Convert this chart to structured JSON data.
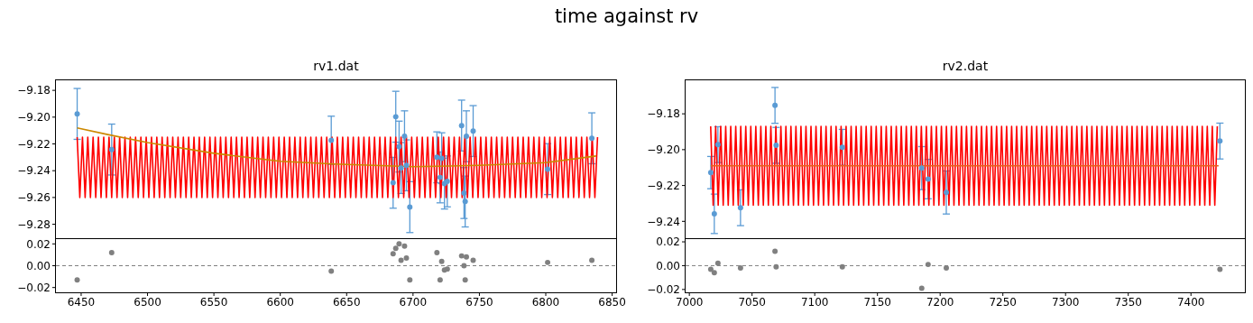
{
  "chart_data": [
    {
      "type": "line",
      "title": "rv1.dat",
      "annotations": [
        "time against rv"
      ],
      "xlim": [
        6431,
        6853
      ],
      "ylim": [
        -9.2904,
        -9.1725
      ],
      "yticks": [
        {
          "value": -9.28,
          "label": "−9.28"
        },
        {
          "value": -9.26,
          "label": "−9.26"
        },
        {
          "value": -9.24,
          "label": "−9.24"
        },
        {
          "value": -9.22,
          "label": "−9.22"
        },
        {
          "value": -9.2,
          "label": "−9.20"
        },
        {
          "value": -9.18,
          "label": "−9.18"
        }
      ],
      "tick_labels": "y",
      "series": [
        {
          "type": "scatter",
          "color": "#5a9bd4",
          "marker": "circle",
          "x": [
            6447,
            6473,
            6638.4,
            6685,
            6687,
            6689.5,
            6691,
            6693.6,
            6695,
            6697.6,
            6718,
            6720.4,
            6721.6,
            6723.7,
            6725.8,
            6736.6,
            6738.4,
            6739.3,
            6740.2,
            6745.3,
            6801.4,
            6834.7
          ],
          "values": [
            -9.1976,
            -9.2242,
            -9.2173,
            -9.249,
            -9.1997,
            -9.222,
            -9.238,
            -9.2143,
            -9.236,
            -9.2672,
            -9.23,
            -9.245,
            -9.2307,
            -9.2496,
            -9.248,
            -9.2063,
            -9.2567,
            -9.263,
            -9.2143,
            -9.2104,
            -9.2388,
            -9.2158
          ],
          "errors": [
            0.019,
            0.019,
            0.018,
            0.019,
            0.019,
            0.019,
            0.019,
            0.019,
            0.019,
            0.019,
            0.019,
            0.019,
            0.019,
            0.019,
            0.019,
            0.019,
            0.019,
            0.019,
            0.019,
            0.019,
            0.019,
            0.019
          ]
        },
        {
          "type": "line",
          "color": "#ff0000",
          "x": [
            6447,
            6449,
            6451,
            6453,
            6455,
            6457,
            6459,
            6461,
            6463,
            6465,
            6467,
            6469,
            6471,
            6473,
            6475,
            6477,
            6479,
            6481,
            6483,
            6485,
            6487,
            6489,
            6491,
            6493,
            6495,
            6497,
            6499,
            6501,
            6503,
            6505,
            6507,
            6509,
            6511,
            6513,
            6515,
            6517,
            6519,
            6521,
            6523,
            6525,
            6527,
            6529,
            6531,
            6533,
            6535,
            6537,
            6539,
            6541,
            6543,
            6545,
            6547,
            6549,
            6551,
            6553,
            6555,
            6557,
            6559,
            6561,
            6563,
            6565,
            6567,
            6569,
            6571,
            6573,
            6575,
            6577,
            6579,
            6581,
            6583,
            6585,
            6587,
            6589,
            6591,
            6593,
            6595,
            6597,
            6599,
            6601,
            6603,
            6605,
            6607,
            6609,
            6611,
            6613,
            6615,
            6617,
            6619,
            6621,
            6623,
            6625,
            6627,
            6629,
            6631,
            6633,
            6635,
            6637,
            6639,
            6641,
            6643,
            6645,
            6647,
            6649,
            6651,
            6653,
            6655,
            6657,
            6659,
            6661,
            6663,
            6665,
            6667,
            6669,
            6671,
            6673,
            6675,
            6677,
            6679,
            6681,
            6683,
            6685,
            6687,
            6689,
            6691,
            6693,
            6695,
            6697,
            6699,
            6701,
            6703,
            6705,
            6707,
            6709,
            6711,
            6713,
            6715,
            6717,
            6719,
            6721,
            6723,
            6725,
            6727,
            6729,
            6731,
            6733,
            6735,
            6737,
            6739,
            6741,
            6743,
            6745,
            6747,
            6749,
            6751,
            6753,
            6755,
            6757,
            6759,
            6761,
            6763,
            6765,
            6767,
            6769,
            6771,
            6773,
            6775,
            6777,
            6779,
            6781,
            6783,
            6785,
            6787,
            6789,
            6791,
            6793,
            6795,
            6797,
            6799,
            6801,
            6803,
            6805,
            6807,
            6809,
            6811,
            6813,
            6815,
            6817,
            6819,
            6821,
            6823,
            6825,
            6827,
            6829,
            6831,
            6833,
            6835,
            6837,
            6839
          ],
          "values": [
            -9.215,
            -9.26,
            -9.215,
            -9.26,
            -9.215,
            -9.26,
            -9.215,
            -9.26,
            -9.215,
            -9.26,
            -9.215,
            -9.26,
            -9.215,
            -9.26,
            -9.215,
            -9.26,
            -9.215,
            -9.26,
            -9.215,
            -9.26,
            -9.215,
            -9.26,
            -9.215,
            -9.26,
            -9.215,
            -9.26,
            -9.215,
            -9.26,
            -9.215,
            -9.26,
            -9.215,
            -9.26,
            -9.215,
            -9.26,
            -9.215,
            -9.26,
            -9.215,
            -9.26,
            -9.215,
            -9.26,
            -9.215,
            -9.26,
            -9.215,
            -9.26,
            -9.215,
            -9.26,
            -9.215,
            -9.26,
            -9.215,
            -9.26,
            -9.215,
            -9.26,
            -9.215,
            -9.26,
            -9.215,
            -9.26,
            -9.215,
            -9.26,
            -9.215,
            -9.26,
            -9.215,
            -9.26,
            -9.215,
            -9.26,
            -9.215,
            -9.26,
            -9.215,
            -9.26,
            -9.215,
            -9.26,
            -9.215,
            -9.26,
            -9.215,
            -9.26,
            -9.215,
            -9.26,
            -9.215,
            -9.26,
            -9.215,
            -9.26,
            -9.215,
            -9.26,
            -9.215,
            -9.26,
            -9.215,
            -9.26,
            -9.215,
            -9.26,
            -9.215,
            -9.26,
            -9.215,
            -9.26,
            -9.215,
            -9.26,
            -9.215,
            -9.26,
            -9.215,
            -9.26,
            -9.215,
            -9.26,
            -9.215,
            -9.26,
            -9.215,
            -9.26,
            -9.215,
            -9.26,
            -9.215,
            -9.26,
            -9.215,
            -9.26,
            -9.215,
            -9.26,
            -9.215,
            -9.26,
            -9.215,
            -9.26,
            -9.215,
            -9.26,
            -9.215,
            -9.26,
            -9.215,
            -9.26,
            -9.215,
            -9.26,
            -9.215,
            -9.26,
            -9.215,
            -9.26,
            -9.215,
            -9.26,
            -9.215,
            -9.26,
            -9.215,
            -9.26,
            -9.215,
            -9.26,
            -9.215,
            -9.26,
            -9.215,
            -9.26,
            -9.215,
            -9.26,
            -9.215,
            -9.26,
            -9.215,
            -9.26,
            -9.215,
            -9.26,
            -9.215,
            -9.26,
            -9.215,
            -9.26,
            -9.215,
            -9.26,
            -9.215,
            -9.26,
            -9.215,
            -9.26,
            -9.215,
            -9.26,
            -9.215,
            -9.26,
            -9.215,
            -9.26,
            -9.215,
            -9.26,
            -9.215,
            -9.26,
            -9.215,
            -9.26,
            -9.215,
            -9.26,
            -9.215,
            -9.26,
            -9.215,
            -9.26,
            -9.215,
            -9.26,
            -9.215,
            -9.26,
            -9.215,
            -9.26,
            -9.215,
            -9.26,
            -9.215,
            -9.26,
            -9.215,
            -9.26,
            -9.215,
            -9.26,
            -9.215,
            -9.26,
            -9.215,
            -9.26,
            -9.215,
            -9.26,
            -9.215
          ]
        },
        {
          "type": "line",
          "color": "#cc8800",
          "x": [
            6447,
            6470,
            6500,
            6550,
            6600,
            6640,
            6700,
            6750,
            6800,
            6838
          ],
          "values": [
            -9.208,
            -9.213,
            -9.219,
            -9.227,
            -9.233,
            -9.235,
            -9.237,
            -9.236,
            -9.234,
            -9.229
          ]
        }
      ]
    },
    {
      "type": "scatter",
      "color": "#808080",
      "marker": "circle",
      "xlim": [
        6431,
        6853
      ],
      "xticks": [
        6450,
        6500,
        6550,
        6600,
        6650,
        6700,
        6750,
        6800,
        6850
      ],
      "ylim": [
        -0.0244,
        0.0244
      ],
      "yticks": [
        {
          "value": -0.02,
          "label": "−0.02"
        },
        {
          "value": 0,
          "label": "0.00"
        },
        {
          "value": 0.02,
          "label": "0.02"
        }
      ],
      "ref_lines": [
        {
          "axis": "y",
          "value": 0,
          "color": "#808080",
          "line_style": "dashed"
        }
      ],
      "x": [
        6447,
        6473,
        6638.4,
        6685,
        6687,
        6689.5,
        6691,
        6693.6,
        6695,
        6697.6,
        6718,
        6720.4,
        6721.6,
        6723.7,
        6725.8,
        6736.6,
        6738.4,
        6739.3,
        6740.2,
        6745.3,
        6801.4,
        6834.7
      ],
      "values": [
        -0.013,
        0.012,
        -0.005,
        0.011,
        0.016,
        0.02,
        0.005,
        0.018,
        0.007,
        -0.013,
        0.012,
        -0.013,
        0.004,
        -0.004,
        -0.003,
        0.009,
        0,
        -0.013,
        0.008,
        0.005,
        0.003,
        0.005
      ]
    },
    {
      "type": "line",
      "title": "rv2.dat",
      "xlim": [
        6997,
        7443
      ],
      "ylim": [
        -9.2494,
        -9.1613
      ],
      "yticks": [
        {
          "value": -9.24,
          "label": "−9.24"
        },
        {
          "value": -9.22,
          "label": "−9.22"
        },
        {
          "value": -9.2,
          "label": "−9.20"
        },
        {
          "value": -9.18,
          "label": "−9.18"
        }
      ],
      "tick_labels": "y",
      "series": [
        {
          "type": "scatter",
          "color": "#5a9bd4",
          "marker": "circle",
          "x": [
            7017.1,
            7019.9,
            7022.8,
            7040.8,
            7068.3,
            7069.2,
            7122,
            7185.3,
            7190.4,
            7204.9,
            7423.1
          ],
          "values": [
            -9.2128,
            -9.2358,
            -9.1972,
            -9.2324,
            -9.1753,
            -9.1976,
            -9.1987,
            -9.2103,
            -9.2164,
            -9.2239,
            -9.1952
          ],
          "errors": [
            0.009,
            0.011,
            0.01,
            0.01,
            0.01,
            0.01,
            0.01,
            0.012,
            0.011,
            0.012,
            0.01
          ]
        },
        {
          "type": "line",
          "color": "#ff0000",
          "x": [
            7017,
            7019,
            7021,
            7023,
            7025,
            7027,
            7029,
            7031,
            7033,
            7035,
            7037,
            7039,
            7041,
            7043,
            7045,
            7047,
            7049,
            7051,
            7053,
            7055,
            7057,
            7059,
            7061,
            7063,
            7065,
            7067,
            7069,
            7071,
            7073,
            7075,
            7077,
            7079,
            7081,
            7083,
            7085,
            7087,
            7089,
            7091,
            7093,
            7095,
            7097,
            7099,
            7101,
            7103,
            7105,
            7107,
            7109,
            7111,
            7113,
            7115,
            7117,
            7119,
            7121,
            7123,
            7125,
            7127,
            7129,
            7131,
            7133,
            7135,
            7137,
            7139,
            7141,
            7143,
            7145,
            7147,
            7149,
            7151,
            7153,
            7155,
            7157,
            7159,
            7161,
            7163,
            7165,
            7167,
            7169,
            7171,
            7173,
            7175,
            7177,
            7179,
            7181,
            7183,
            7185,
            7187,
            7189,
            7191,
            7193,
            7195,
            7197,
            7199,
            7201,
            7203,
            7205,
            7207,
            7209,
            7211,
            7213,
            7215,
            7217,
            7219,
            7221,
            7223,
            7225,
            7227,
            7229,
            7231,
            7233,
            7235,
            7237,
            7239,
            7241,
            7243,
            7245,
            7247,
            7249,
            7251,
            7253,
            7255,
            7257,
            7259,
            7261,
            7263,
            7265,
            7267,
            7269,
            7271,
            7273,
            7275,
            7277,
            7279,
            7281,
            7283,
            7285,
            7287,
            7289,
            7291,
            7293,
            7295,
            7297,
            7299,
            7301,
            7303,
            7305,
            7307,
            7309,
            7311,
            7313,
            7315,
            7317,
            7319,
            7321,
            7323,
            7325,
            7327,
            7329,
            7331,
            7333,
            7335,
            7337,
            7339,
            7341,
            7343,
            7345,
            7347,
            7349,
            7351,
            7353,
            7355,
            7357,
            7359,
            7361,
            7363,
            7365,
            7367,
            7369,
            7371,
            7373,
            7375,
            7377,
            7379,
            7381,
            7383,
            7385,
            7387,
            7389,
            7391,
            7393,
            7395,
            7397,
            7399,
            7401,
            7403,
            7405,
            7407,
            7409,
            7411,
            7413,
            7415,
            7417,
            7419,
            7421
          ],
          "values": [
            -9.187,
            -9.231,
            -9.187,
            -9.231,
            -9.187,
            -9.231,
            -9.187,
            -9.231,
            -9.187,
            -9.231,
            -9.187,
            -9.231,
            -9.187,
            -9.231,
            -9.187,
            -9.231,
            -9.187,
            -9.231,
            -9.187,
            -9.231,
            -9.187,
            -9.231,
            -9.187,
            -9.231,
            -9.187,
            -9.231,
            -9.187,
            -9.231,
            -9.187,
            -9.231,
            -9.187,
            -9.231,
            -9.187,
            -9.231,
            -9.187,
            -9.231,
            -9.187,
            -9.231,
            -9.187,
            -9.231,
            -9.187,
            -9.231,
            -9.187,
            -9.231,
            -9.187,
            -9.231,
            -9.187,
            -9.231,
            -9.187,
            -9.231,
            -9.187,
            -9.231,
            -9.187,
            -9.231,
            -9.187,
            -9.231,
            -9.187,
            -9.231,
            -9.187,
            -9.231,
            -9.187,
            -9.231,
            -9.187,
            -9.231,
            -9.187,
            -9.231,
            -9.187,
            -9.231,
            -9.187,
            -9.231,
            -9.187,
            -9.231,
            -9.187,
            -9.231,
            -9.187,
            -9.231,
            -9.187,
            -9.231,
            -9.187,
            -9.231,
            -9.187,
            -9.231,
            -9.187,
            -9.231,
            -9.187,
            -9.231,
            -9.187,
            -9.231,
            -9.187,
            -9.231,
            -9.187,
            -9.231,
            -9.187,
            -9.231,
            -9.187,
            -9.231,
            -9.187,
            -9.231,
            -9.187,
            -9.231,
            -9.187,
            -9.231,
            -9.187,
            -9.231,
            -9.187,
            -9.231,
            -9.187,
            -9.231,
            -9.187,
            -9.231,
            -9.187,
            -9.231,
            -9.187,
            -9.231,
            -9.187,
            -9.231,
            -9.187,
            -9.231,
            -9.187,
            -9.231,
            -9.187,
            -9.231,
            -9.187,
            -9.231,
            -9.187,
            -9.231,
            -9.187,
            -9.231,
            -9.187,
            -9.231,
            -9.187,
            -9.231,
            -9.187,
            -9.231,
            -9.187,
            -9.231,
            -9.187,
            -9.231,
            -9.187,
            -9.231,
            -9.187,
            -9.231,
            -9.187,
            -9.231,
            -9.187,
            -9.231,
            -9.187,
            -9.231,
            -9.187,
            -9.231,
            -9.187,
            -9.231,
            -9.187,
            -9.231,
            -9.187,
            -9.231,
            -9.187,
            -9.231,
            -9.187,
            -9.231,
            -9.187,
            -9.231,
            -9.187,
            -9.231,
            -9.187,
            -9.231,
            -9.187,
            -9.231,
            -9.187,
            -9.231,
            -9.187,
            -9.231,
            -9.187,
            -9.231,
            -9.187,
            -9.231,
            -9.187,
            -9.231,
            -9.187,
            -9.231,
            -9.187,
            -9.231,
            -9.187,
            -9.231,
            -9.187,
            -9.231,
            -9.187,
            -9.231,
            -9.187,
            -9.231,
            -9.187,
            -9.231,
            -9.187,
            -9.231,
            -9.187,
            -9.231,
            -9.187,
            -9.231,
            -9.187,
            -9.231,
            -9.187,
            -9.231,
            -9.187
          ]
        },
        {
          "type": "line",
          "color": "#e8601c",
          "x": [
            7017,
            7422
          ],
          "values": [
            -9.209,
            -9.209
          ]
        }
      ]
    },
    {
      "type": "scatter",
      "color": "#808080",
      "marker": "circle",
      "xlim": [
        6997,
        7443
      ],
      "xticks": [
        7000,
        7050,
        7100,
        7150,
        7200,
        7250,
        7300,
        7350,
        7400
      ],
      "ylim": [
        -0.0224,
        0.0223
      ],
      "yticks": [
        {
          "value": -0.02,
          "label": "−0.02"
        },
        {
          "value": 0,
          "label": "0.00"
        },
        {
          "value": 0.02,
          "label": "0.02"
        }
      ],
      "ref_lines": [
        {
          "axis": "y",
          "value": 0,
          "color": "#808080",
          "line_style": "dashed"
        }
      ],
      "x": [
        7017.1,
        7019.9,
        7022.8,
        7040.8,
        7068.3,
        7069.2,
        7122,
        7185.3,
        7190.4,
        7204.9,
        7423.1
      ],
      "values": [
        -0.003,
        -0.006,
        0.002,
        -0.002,
        0.012,
        -0.001,
        -0.001,
        -0.019,
        0.001,
        -0.002,
        -0.003
      ]
    }
  ]
}
